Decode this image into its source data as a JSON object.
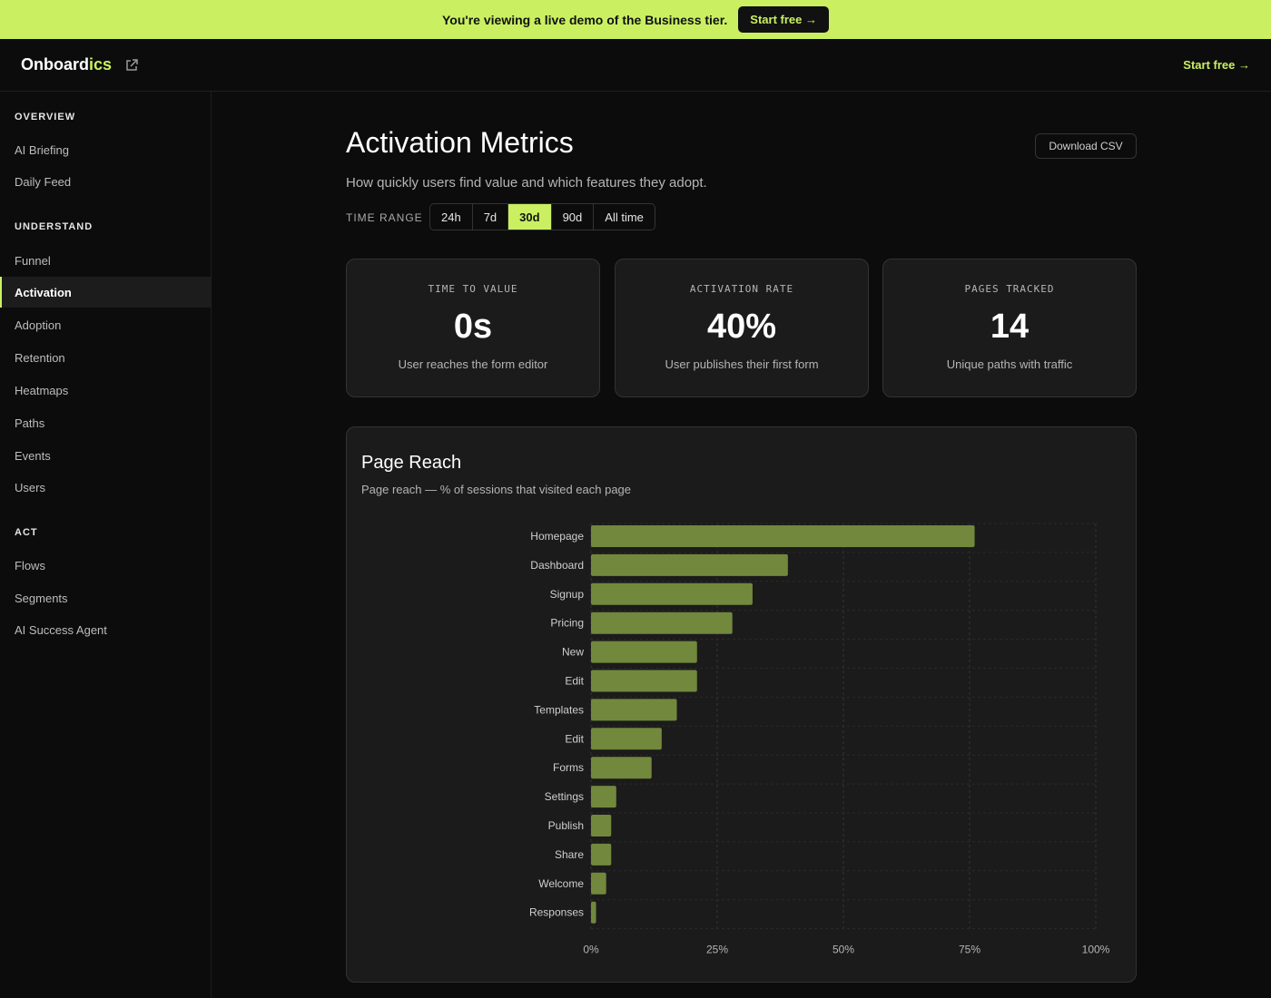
{
  "banner": {
    "text": "You're viewing a live demo of the Business tier.",
    "cta": "Start free →"
  },
  "topbar": {
    "logo_main": "Onboard",
    "logo_accent": "ics",
    "cta": "Start free →"
  },
  "sidebar": {
    "sections": [
      {
        "label": "OVERVIEW",
        "items": [
          "AI Briefing",
          "Daily Feed"
        ]
      },
      {
        "label": "UNDERSTAND",
        "items": [
          "Funnel",
          "Activation",
          "Adoption",
          "Retention",
          "Heatmaps",
          "Paths",
          "Events",
          "Users"
        ]
      },
      {
        "label": "ACT",
        "items": [
          "Flows",
          "Segments",
          "AI Success Agent"
        ]
      }
    ],
    "active": "Activation"
  },
  "main": {
    "title": "Activation Metrics",
    "subtitle": "How quickly users find value and which features they adopt.",
    "download": "Download CSV",
    "range_label": "TIME RANGE",
    "ranges": [
      "24h",
      "7d",
      "30d",
      "90d",
      "All time"
    ],
    "active_range": "30d"
  },
  "cards": [
    {
      "label": "TIME TO VALUE",
      "value": "0s",
      "desc": "User reaches the form editor"
    },
    {
      "label": "ACTIVATION RATE",
      "value": "40%",
      "desc": "User publishes their first form"
    },
    {
      "label": "PAGES TRACKED",
      "value": "14",
      "desc": "Unique paths with traffic"
    }
  ],
  "colors": {
    "accent": "#caf062",
    "bar": "#72883d",
    "panel": "#1b1b1b"
  },
  "chart_data": {
    "type": "bar",
    "orientation": "horizontal",
    "title": "Page Reach",
    "subtitle": "Page reach — % of sessions that visited each page",
    "categories": [
      "Homepage",
      "Dashboard",
      "Signup",
      "Pricing",
      "New",
      "Edit",
      "Templates",
      "Edit",
      "Forms",
      "Settings",
      "Publish",
      "Share",
      "Welcome",
      "Responses"
    ],
    "values": [
      76,
      39,
      32,
      28,
      21,
      21,
      17,
      14,
      12,
      5,
      4,
      4,
      3,
      1
    ],
    "xlim": [
      0,
      100
    ],
    "x_ticks": [
      "0%",
      "25%",
      "50%",
      "75%",
      "100%"
    ],
    "x_tick_values": [
      0,
      25,
      50,
      75,
      100
    ],
    "grid": true
  }
}
